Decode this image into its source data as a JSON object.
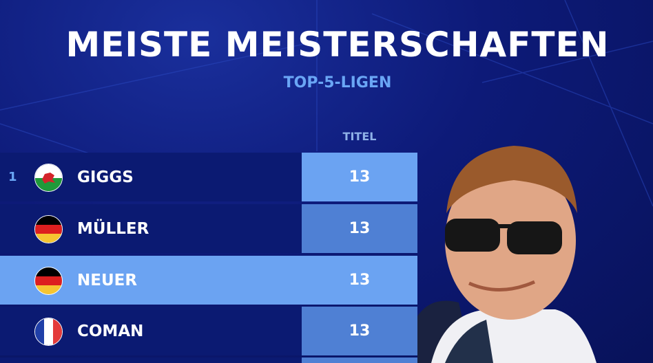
{
  "header": {
    "title": "MEISTE MEISTERSCHAFTEN",
    "subtitle": "TOP-5-LIGEN"
  },
  "table": {
    "column_header": "TITEL",
    "rows": [
      {
        "rank": "1",
        "name": "GIGGS",
        "flag": "wales",
        "titles": "13"
      },
      {
        "rank": "",
        "name": "MÜLLER",
        "flag": "germany",
        "titles": "13"
      },
      {
        "rank": "",
        "name": "NEUER",
        "flag": "germany",
        "titles": "13",
        "highlighted": true
      },
      {
        "rank": "",
        "name": "COMAN",
        "flag": "france",
        "titles": "13"
      }
    ]
  },
  "colors": {
    "background": "#0d1a78",
    "highlight": "#6ba3f2",
    "value_cell": "#4f80d4",
    "accent_text": "#6aa6f5"
  }
}
